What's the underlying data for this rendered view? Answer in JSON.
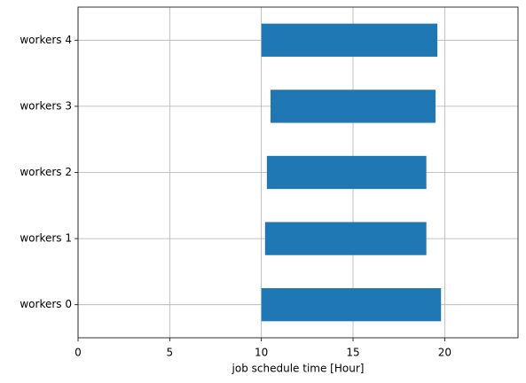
{
  "chart_data": {
    "type": "floating-barh",
    "xlabel": "job schedule time [Hour]",
    "categories": [
      "workers 0",
      "workers 1",
      "workers 2",
      "workers 3",
      "workers 4"
    ],
    "starts": [
      10.0,
      10.2,
      10.3,
      10.5,
      10.0
    ],
    "ends": [
      19.8,
      19.0,
      19.0,
      19.5,
      19.6
    ],
    "color": "#1f77b4",
    "xlim": [
      0,
      24
    ],
    "xticks": [
      0,
      5,
      10,
      15,
      20
    ],
    "grid": true
  }
}
